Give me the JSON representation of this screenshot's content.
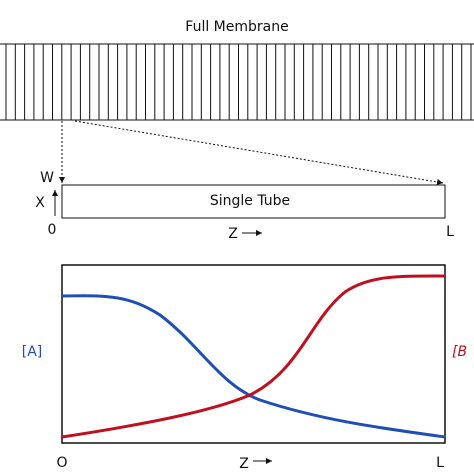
{
  "top": {
    "title": "Full Membrane"
  },
  "tube": {
    "label": "Single Tube",
    "w_label": "W",
    "x_label": "X",
    "origin": "0",
    "z_label": "Z",
    "end": "L"
  },
  "plot": {
    "a_label": "[A]",
    "b_label": "[B",
    "origin": "O",
    "z_label": "Z",
    "end": "L"
  }
}
